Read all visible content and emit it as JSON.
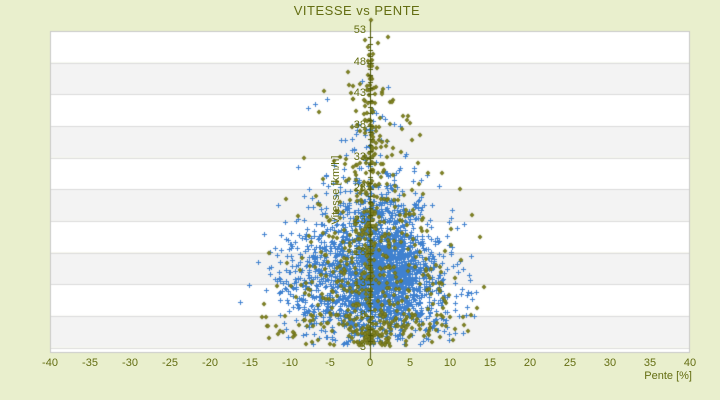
{
  "window": {
    "background": "#e9efcd",
    "text_color": "#646e12"
  },
  "chart_data": {
    "type": "scatter",
    "title": "VITESSE vs PENTE",
    "xlabel": "Pente [%]",
    "ylabel": "Vitesse [km/h]",
    "xlim": [
      -40,
      40
    ],
    "ylim": [
      3,
      53
    ],
    "xticks": [
      -40,
      -35,
      -30,
      -25,
      -20,
      -15,
      -10,
      -5,
      0,
      5,
      10,
      15,
      20,
      25,
      30,
      35,
      40
    ],
    "yticks": [
      3,
      8,
      13,
      18,
      23,
      28,
      33,
      38,
      43,
      48,
      53
    ],
    "legend": "none",
    "grid": "horizontal-bands-alternating",
    "axis_line_at_x": 0,
    "colors": {
      "plot_background": "#ffffff",
      "band_gray": "#f3f3f3",
      "grid_line": "#dcdcdc",
      "plot_border": "#c8c8c8",
      "axis_line": "#4d5705",
      "blue_marker": "#3f81cf",
      "olive_marker": "#6e7119",
      "olive_marker_light": "#b9bb42"
    },
    "seed": 42,
    "series": [
      {
        "name": "vitesse-points-blue",
        "marker": "plus",
        "color": "#3f81cf",
        "center_x": 0.8,
        "yclip": [
          3.3,
          46
        ],
        "envelope": [
          [
            4,
            11
          ],
          [
            12,
            14.5
          ],
          [
            20,
            13
          ],
          [
            30,
            7.5
          ],
          [
            38,
            4.5
          ],
          [
            46,
            3
          ]
        ],
        "clusters": [
          {
            "n": 1150,
            "cx": 2.0,
            "cy": 15.5,
            "sx": 3.0,
            "sy": 4.8
          },
          {
            "n": 550,
            "cx": -1.5,
            "cy": 13.5,
            "sx": 5.0,
            "sy": 4.5
          },
          {
            "n": 350,
            "cx": 0.5,
            "cy": 9.5,
            "sx": 6.0,
            "sy": 3.0
          },
          {
            "n": 250,
            "cx": -4.5,
            "cy": 19.0,
            "sx": 4.5,
            "sy": 5.0
          },
          {
            "n": 120,
            "cx": 1.0,
            "cy": 27.0,
            "sx": 3.2,
            "sy": 3.5
          },
          {
            "n": 30,
            "cx": -0.5,
            "cy": 37.0,
            "sx": 2.0,
            "sy": 1.6
          }
        ],
        "outliers": [
          [
            -16.2,
            10.2
          ],
          [
            -15.1,
            12.8
          ],
          [
            -14.0,
            16.5
          ],
          [
            -13.2,
            21.0
          ],
          [
            12.6,
            17.5
          ],
          [
            13.2,
            11.8
          ],
          [
            11.8,
            22.5
          ],
          [
            -11.5,
            25.5
          ],
          [
            -7.8,
            40.8
          ],
          [
            -6.9,
            41.5
          ],
          [
            -5.4,
            42.3
          ],
          [
            -1.0,
            45.1
          ],
          [
            2.2,
            44.2
          ],
          [
            -9.0,
            31.5
          ],
          [
            8.6,
            28.5
          ],
          [
            10.2,
            24.8
          ]
        ]
      },
      {
        "name": "vitesse-points-olive",
        "marker": "diamond",
        "color": "#6e7119",
        "accent": "#b9bb42",
        "center_x": 0.2,
        "yclip": [
          3.3,
          54.8
        ],
        "envelope": [
          [
            3,
            14
          ],
          [
            8,
            14
          ],
          [
            15,
            12
          ],
          [
            25,
            9
          ],
          [
            35,
            6
          ],
          [
            45,
            3.5
          ],
          [
            55,
            1.5
          ]
        ],
        "clusters": [
          {
            "n": 200,
            "cx": 0.5,
            "cy": 13.0,
            "sx": 5.8,
            "sy": 5.5
          },
          {
            "n": 130,
            "cx": 0.0,
            "cy": 22.0,
            "sx": 4.8,
            "sy": 7.0
          },
          {
            "n": 90,
            "cx": 0.2,
            "cy": 34.0,
            "sx": 2.2,
            "sy": 7.0
          },
          {
            "n": 100,
            "cx": 0.0,
            "cy": 30.0,
            "sx": 0.35,
            "sy": 13.0
          },
          {
            "n": 110,
            "cx": 1.0,
            "cy": 6.2,
            "sx": 6.5,
            "sy": 1.8
          },
          {
            "n": 50,
            "cx": 0.3,
            "cy": 4.5,
            "sx": 1.2,
            "sy": 1.0
          }
        ],
        "outliers": [
          [
            0.1,
            54.7
          ],
          [
            0.4,
            49.3
          ],
          [
            -0.3,
            48.2
          ],
          [
            0.9,
            47.1
          ],
          [
            -1.2,
            44.6
          ],
          [
            1.6,
            43.9
          ],
          [
            -2.4,
            43.2
          ],
          [
            2.8,
            41.8
          ],
          [
            -5.8,
            43.5
          ],
          [
            -6.4,
            40.2
          ],
          [
            4.6,
            39.0
          ],
          [
            6.2,
            36.5
          ],
          [
            -8.2,
            33.0
          ],
          [
            9.0,
            30.5
          ],
          [
            11.2,
            28.0
          ],
          [
            -10.5,
            26.5
          ],
          [
            12.8,
            24.0
          ],
          [
            13.8,
            20.5
          ],
          [
            -12.6,
            18.0
          ],
          [
            14.2,
            12.5
          ],
          [
            -13.2,
            9.8
          ],
          [
            13.4,
            9.2
          ],
          [
            -11.8,
            6.4
          ],
          [
            12.2,
            5.6
          ],
          [
            -9.6,
            4.6
          ],
          [
            10.4,
            4.2
          ],
          [
            7.8,
            3.8
          ],
          [
            -7.2,
            3.9
          ]
        ]
      }
    ]
  }
}
